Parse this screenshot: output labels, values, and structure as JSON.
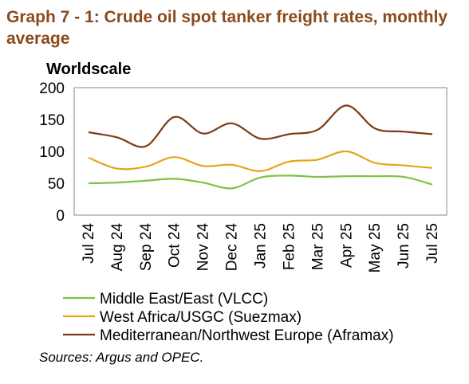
{
  "title": "Graph 7 - 1: Crude oil spot tanker freight rates, monthly average",
  "source": "Sources: Argus and OPEC.",
  "colors": {
    "title": "#8B4A1C",
    "series": [
      "#7DC242",
      "#E8A317",
      "#7A3B14"
    ]
  },
  "chart_data": {
    "type": "line",
    "ylabel": "Worldscale",
    "xlabel": "",
    "ylim": [
      0,
      200
    ],
    "yticks": [
      "0",
      "50",
      "100",
      "150",
      "200"
    ],
    "categories": [
      "Jul 24",
      "Aug 24",
      "Sep 24",
      "Oct 24",
      "Nov 24",
      "Dec 24",
      "Jan 25",
      "Feb 25",
      "Mar 25",
      "Apr 25",
      "May 25",
      "Jun 25",
      "Jul 25"
    ],
    "grid": false,
    "legend": "bottom",
    "series": [
      {
        "name": "Middle East/East (VLCC)",
        "values": [
          50,
          51,
          54,
          57,
          51,
          42,
          59,
          62,
          60,
          61,
          61,
          60,
          48
        ]
      },
      {
        "name": "West Africa/USGC (Suezmax)",
        "values": [
          90,
          73,
          76,
          91,
          77,
          79,
          69,
          84,
          87,
          100,
          82,
          78,
          74
        ]
      },
      {
        "name": "Mediterranean/Northwest Europe (Aframax)",
        "values": [
          130,
          122,
          108,
          154,
          128,
          144,
          120,
          127,
          134,
          172,
          136,
          131,
          127
        ]
      }
    ]
  }
}
